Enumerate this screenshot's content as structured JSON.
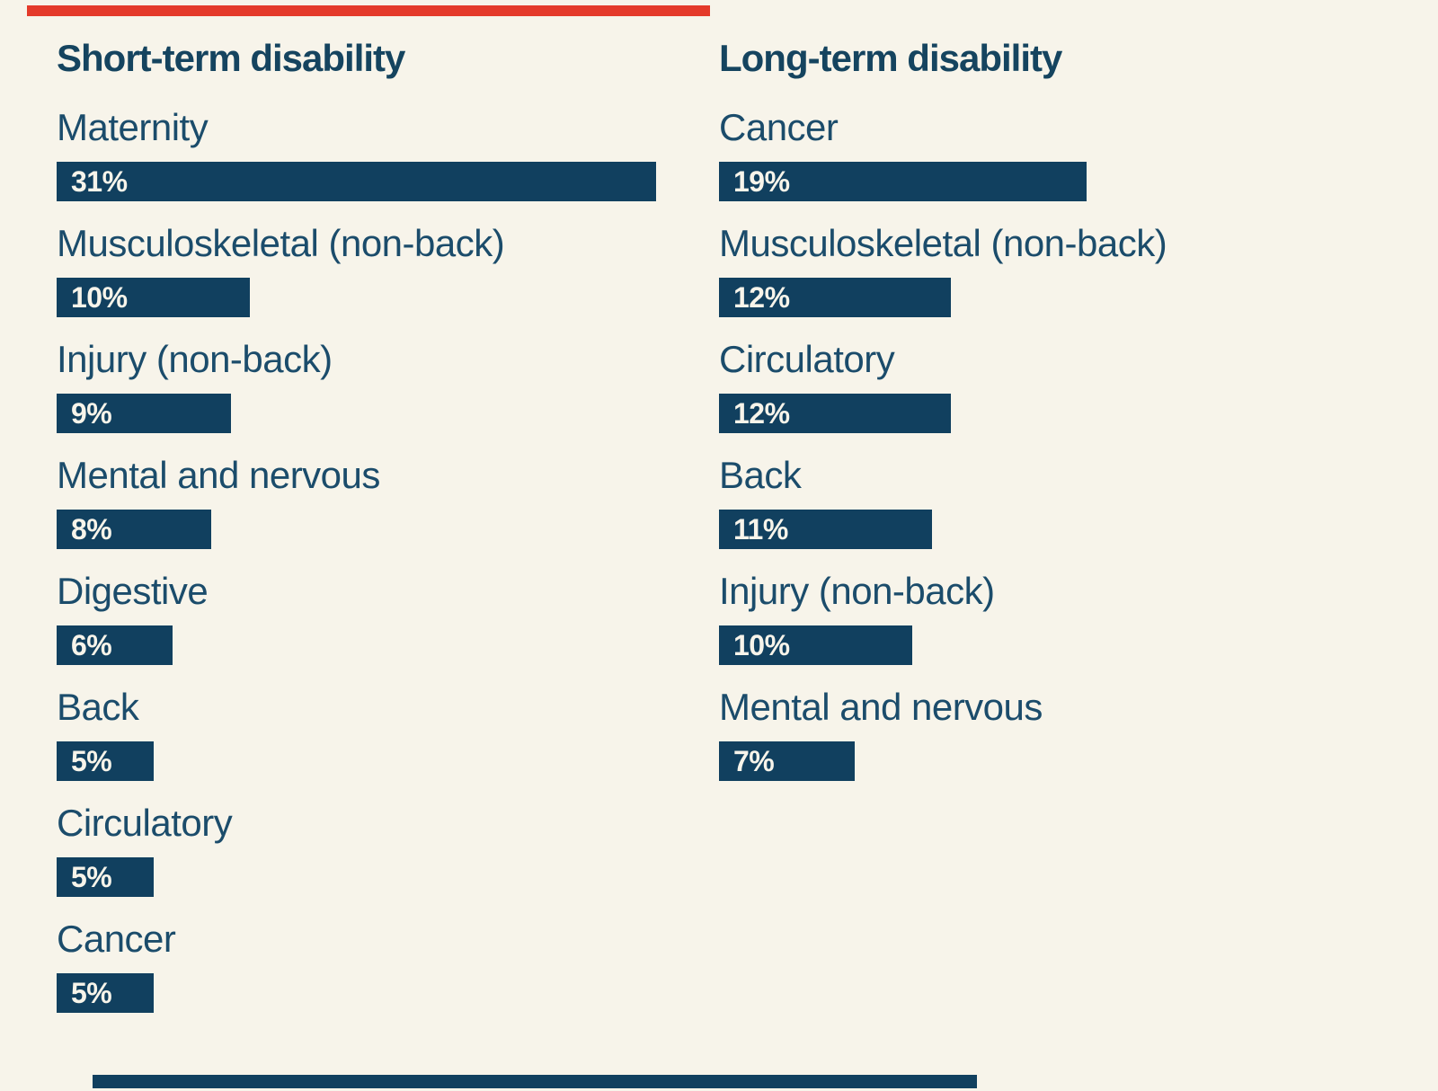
{
  "page": {
    "background_color": "#f7f4ea",
    "bar_color": "#11405f",
    "label_color": "#1b4c6b",
    "title_color": "#15445f",
    "value_text_color": "#f7f4ea",
    "cropped_top_element_color": "#e43a2a",
    "cropped_bottom_element_color": "#11405f"
  },
  "chart_data": [
    {
      "type": "bar",
      "orientation": "horizontal",
      "title": "Short-term disability",
      "unit": "%",
      "xlim": [
        0,
        33
      ],
      "grid": false,
      "legend": false,
      "categories": [
        "Maternity",
        "Musculoskeletal (non-back)",
        "Injury (non-back)",
        "Mental and nervous",
        "Digestive",
        "Back",
        "Circulatory",
        "Cancer"
      ],
      "values": [
        31,
        10,
        9,
        8,
        6,
        5,
        5,
        5
      ],
      "value_labels": [
        "31%",
        "10%",
        "9%",
        "8%",
        "6%",
        "5%",
        "5%",
        "5%"
      ]
    },
    {
      "type": "bar",
      "orientation": "horizontal",
      "title": "Long-term disability",
      "unit": "%",
      "xlim": [
        0,
        33
      ],
      "grid": false,
      "legend": false,
      "categories": [
        "Cancer",
        "Musculoskeletal (non-back)",
        "Circulatory",
        "Back",
        "Injury (non-back)",
        "Mental and nervous"
      ],
      "values": [
        19,
        12,
        12,
        11,
        10,
        7
      ],
      "value_labels": [
        "19%",
        "12%",
        "12%",
        "11%",
        "10%",
        "7%"
      ]
    }
  ]
}
